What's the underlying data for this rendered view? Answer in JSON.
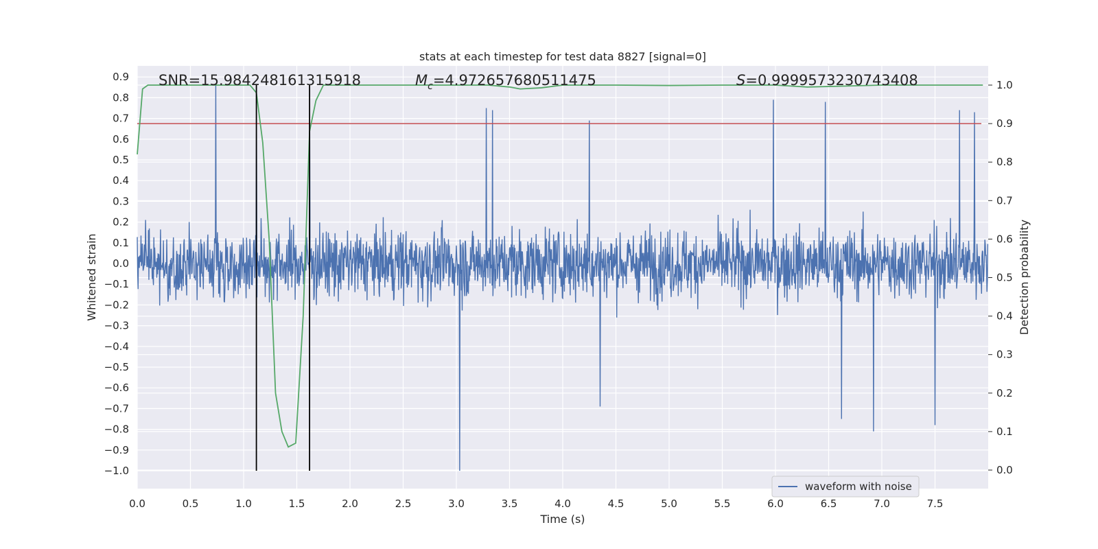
{
  "chart_data": {
    "type": "line",
    "title": "stats at each timestep for test data 8827 [signal=0]",
    "xlabel": "Time (s)",
    "ylabel": "Whitened strain",
    "y2label": "Detection probability",
    "xlim": [
      0.0,
      8.0
    ],
    "ylim": [
      -1.09,
      0.93
    ],
    "y2lim": [
      -0.048,
      1.048
    ],
    "grid": true,
    "legend_position": "lower-right",
    "x_ticks": [
      "0.0",
      "0.5",
      "1.0",
      "1.5",
      "2.0",
      "2.5",
      "3.0",
      "3.5",
      "4.0",
      "4.5",
      "5.0",
      "5.5",
      "6.0",
      "6.5",
      "7.0",
      "7.5"
    ],
    "y_ticks": [
      "0.9",
      "0.8",
      "0.7",
      "0.6",
      "0.5",
      "0.4",
      "0.3",
      "0.2",
      "0.1",
      "0.0",
      "−0.1",
      "−0.2",
      "−0.3",
      "−0.4",
      "−0.5",
      "−0.6",
      "−0.7",
      "−0.8",
      "−0.9",
      "−1.0"
    ],
    "y2_ticks": [
      "1.0",
      "0.9",
      "0.8",
      "0.7",
      "0.6",
      "0.5",
      "0.4",
      "0.3",
      "0.2",
      "0.1",
      "0.0"
    ],
    "annotations": {
      "snr": "SNR=15.984248161315918",
      "mc_symbol": "M",
      "mc_sub": "c",
      "mc_value": "=4.972657680511475",
      "s_symbol": "S",
      "s_value": "=0.9999573230743408"
    },
    "series": [
      {
        "name": "waveform with noise",
        "color": "#4c72b0",
        "sample_rate_hz": 256,
        "envelope_typical_abs": 0.36,
        "peaks": [
          {
            "x": 0.74,
            "y": 0.86
          },
          {
            "x": 1.12,
            "y": 0.71
          },
          {
            "x": 1.62,
            "y": 0.71
          },
          {
            "x": 3.03,
            "y": -1.0
          },
          {
            "x": 3.28,
            "y": 0.75
          },
          {
            "x": 3.34,
            "y": 0.74
          },
          {
            "x": 4.25,
            "y": 0.69
          },
          {
            "x": 4.35,
            "y": -0.69
          },
          {
            "x": 5.98,
            "y": 0.79
          },
          {
            "x": 6.47,
            "y": 0.78
          },
          {
            "x": 6.62,
            "y": -0.75
          },
          {
            "x": 6.92,
            "y": -0.81
          },
          {
            "x": 7.5,
            "y": -0.78
          },
          {
            "x": 7.73,
            "y": 0.74
          },
          {
            "x": 7.87,
            "y": 0.73
          }
        ]
      }
    ],
    "detection_probability": {
      "color": "#55a868",
      "x": [
        0.0,
        0.05,
        0.1,
        0.2,
        0.4,
        0.6,
        0.8,
        1.0,
        1.06,
        1.12,
        1.18,
        1.24,
        1.3,
        1.36,
        1.42,
        1.49,
        1.56,
        1.62,
        1.68,
        1.75,
        1.85,
        2.2,
        2.6,
        3.0,
        3.3,
        3.5,
        3.6,
        3.8,
        4.0,
        4.5,
        5.0,
        5.5,
        6.0,
        6.3,
        7.0,
        7.5,
        7.95
      ],
      "y": [
        0.82,
        0.99,
        1.0,
        1.0,
        1.0,
        1.0,
        1.0,
        1.0,
        1.0,
        0.98,
        0.85,
        0.6,
        0.2,
        0.1,
        0.06,
        0.07,
        0.4,
        0.88,
        0.96,
        1.0,
        1.0,
        1.0,
        1.0,
        1.0,
        1.0,
        0.995,
        0.99,
        0.993,
        1.0,
        1.0,
        0.999,
        1.0,
        1.0,
        0.995,
        1.0,
        1.0,
        1.0
      ]
    },
    "threshold": {
      "color": "#c44e52",
      "y_prob": 0.9
    },
    "markers": [
      {
        "x": 1.12,
        "color": "#000000"
      },
      {
        "x": 1.62,
        "color": "#000000"
      }
    ]
  }
}
